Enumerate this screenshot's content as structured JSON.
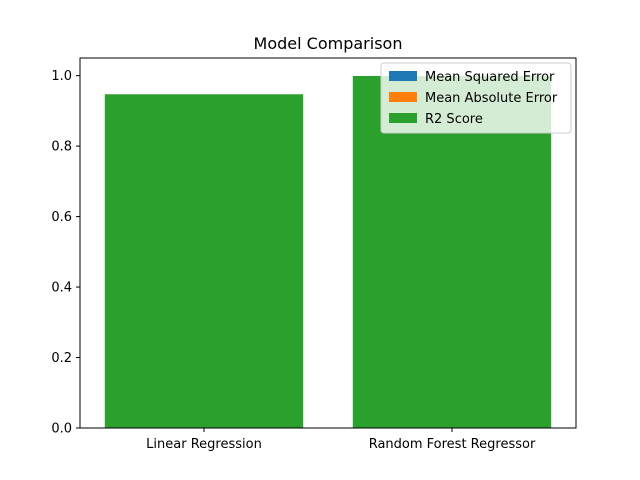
{
  "chart_data": {
    "type": "bar",
    "title": "Model Comparison",
    "xlabel": "",
    "ylabel": "",
    "categories": [
      "Linear Regression",
      "Random Forest Regressor"
    ],
    "ylim": [
      0,
      1.05
    ],
    "yticks": [
      "0.0",
      "0.2",
      "0.4",
      "0.6",
      "0.8",
      "1.0"
    ],
    "ytick_values": [
      0,
      0.2,
      0.4,
      0.6,
      0.8,
      1.0
    ],
    "grid": false,
    "legend_position": "top-right",
    "series": [
      {
        "name": "Mean Squared Error",
        "color": "#1f77b4",
        "values": [
          0.0,
          0.0
        ]
      },
      {
        "name": "Mean Absolute Error",
        "color": "#ff7f0e",
        "values": [
          0.0,
          0.0
        ]
      },
      {
        "name": "R2 Score",
        "color": "#2ca02c",
        "values": [
          0.947,
          0.999
        ]
      }
    ]
  }
}
